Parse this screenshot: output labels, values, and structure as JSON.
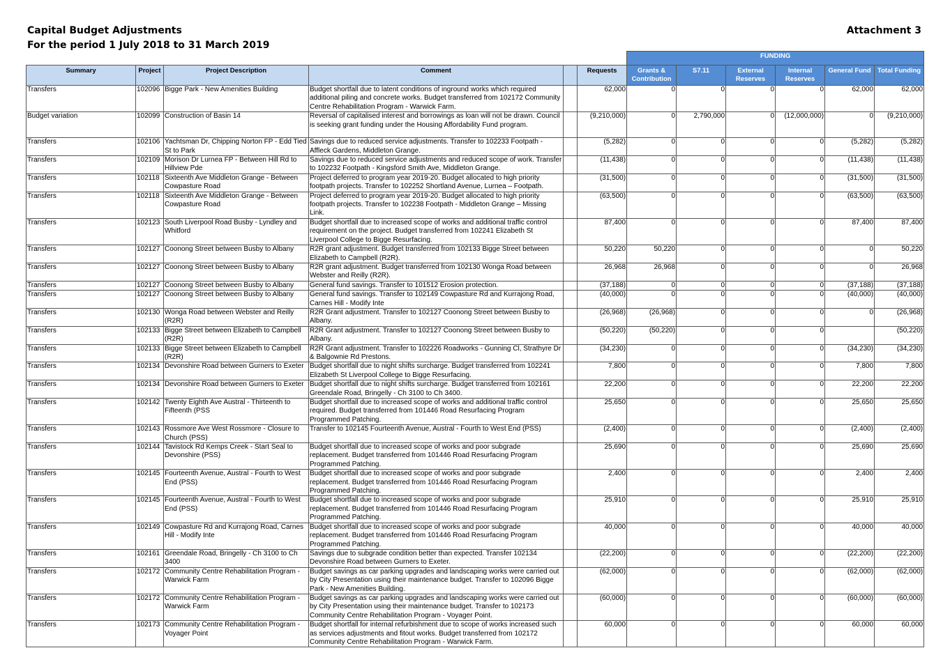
{
  "header": {
    "title": "Capital Budget Adjustments",
    "period": "For the period 1 July 2018 to 31 March 2019",
    "attachment": "Attachment 3"
  },
  "table": {
    "funding_label": "FUNDING",
    "columns": {
      "summary": "Summary",
      "project": "Project",
      "description": "Project Description",
      "comment": "Comment",
      "requests": "Requests",
      "grants": "Grants & Contribution",
      "s711": "S7.11",
      "external": "External Reserves",
      "internal": "Internal Reserves",
      "general": "General Fund",
      "total": "Total Funding"
    },
    "rows": [
      {
        "summary": "Transfers",
        "project": "102096",
        "description": "Bigge Park - New Amenities Building",
        "comment": "Budget shortfall due to latent conditions of inground works which required additional piling and concrete works.  Budget transferred from 102172 Community Centre Rehabilitation Program - Warwick Farm.",
        "requests": "62,000",
        "grants": "0",
        "s711": "0",
        "external": "0",
        "internal": "0",
        "general": "62,000",
        "total": "62,000"
      },
      {
        "summary": "Budget variation",
        "project": "102099",
        "description": "Construction of Basin 14",
        "comment": "Reversal of capitalised interest and borrowings as loan will not be drawn. Council is seeking grant funding under the Housing Affordability Fund program.",
        "requests": "(9,210,000)",
        "grants": "0",
        "s711": "2,790,000",
        "external": "0",
        "internal": "(12,000,000)",
        "general": "0",
        "total": "(9,210,000)"
      },
      {
        "summary": "Transfers",
        "project": "102106",
        "description": "Yachtsman Dr, Chipping Norton FP - Edd Tied St to Park",
        "comment": "Savings due to reduced service adjustments. Transfer to 102233 Footpath - Affleck Gardens, Middleton Grange.",
        "requests": "(5,282)",
        "grants": "0",
        "s711": "0",
        "external": "0",
        "internal": "0",
        "general": "(5,282)",
        "total": "(5,282)"
      },
      {
        "summary": "Transfers",
        "project": "102109",
        "description": "Morison Dr Lurnea FP - Between Hill Rd to Hillview Pde",
        "comment": "Savings due to reduced service adjustments and reduced scope of work. Transfer to 102232 Footpath - Kingsford Smith Ave, Middleton Grange.",
        "requests": "(11,438)",
        "grants": "0",
        "s711": "0",
        "external": "0",
        "internal": "0",
        "general": "(11,438)",
        "total": "(11,438)"
      },
      {
        "summary": "Transfers",
        "project": "102118",
        "description": "Sixteenth Ave Middleton Grange - Between Cowpasture Road",
        "comment": "Project deferred to program year 2019-20.  Budget allocated to high priority footpath projects. Transfer to 102252 Shortland Avenue, Lurnea – Footpath.",
        "requests": "(31,500)",
        "grants": "0",
        "s711": "0",
        "external": "0",
        "internal": "0",
        "general": "(31,500)",
        "total": "(31,500)"
      },
      {
        "summary": "Transfers",
        "project": "102118",
        "description": "Sixteenth Ave Middleton Grange - Between Cowpasture Road",
        "comment": "Project deferred to program year 2019-20.  Budget allocated to high priority footpath projects. Transfer to 102238 Footpath - Middleton Grange – Missing Link.",
        "requests": "(63,500)",
        "grants": "0",
        "s711": "0",
        "external": "0",
        "internal": "0",
        "general": "(63,500)",
        "total": "(63,500)"
      },
      {
        "summary": "Transfers",
        "project": "102123",
        "description": "South Liverpool Road Busby - Lyndley and Whitford",
        "comment": "Budget shortfall due to increased scope of works and additional traffic control requirement on the project.  Budget transferred from 102241 Elizabeth St Liverpool College to Bigge Resurfacing.",
        "requests": "87,400",
        "grants": "0",
        "s711": "0",
        "external": "0",
        "internal": "0",
        "general": "87,400",
        "total": "87,400"
      },
      {
        "summary": "Transfers",
        "project": "102127",
        "description": "Coonong Street between Busby to Albany",
        "comment": "R2R grant adjustment.  Budget transferred from 102133 Bigge Street between Elizabeth to Campbell (R2R).",
        "requests": "50,220",
        "grants": "50,220",
        "s711": "0",
        "external": "0",
        "internal": "0",
        "general": "0",
        "total": "50,220"
      },
      {
        "summary": "Transfers",
        "project": "102127",
        "description": "Coonong Street between Busby to Albany",
        "comment": "R2R grant adjustment.  Budget transferred from 102130 Wonga Road between Webster and Reilly (R2R).",
        "requests": "26,968",
        "grants": "26,968",
        "s711": "0",
        "external": "0",
        "internal": "0",
        "general": "0",
        "total": "26,968"
      },
      {
        "summary": "Transfers",
        "project": "102127",
        "description": "Coonong Street between Busby to Albany",
        "comment": "General fund savings.  Transfer to 101512 Erosion protection.",
        "requests": "(37,188)",
        "grants": "0",
        "s711": "0",
        "external": "0",
        "internal": "0",
        "general": "(37,188)",
        "total": "(37,188)"
      },
      {
        "summary": "Transfers",
        "project": "102127",
        "description": "Coonong Street between Busby to Albany",
        "comment": "General fund savings.  Transfer to 102149 Cowpasture Rd and Kurrajong Road, Carnes Hill  - Modify Inte",
        "requests": "(40,000)",
        "grants": "0",
        "s711": "0",
        "external": "0",
        "internal": "0",
        "general": "(40,000)",
        "total": "(40,000)"
      },
      {
        "summary": "Transfers",
        "project": "102130",
        "description": "Wonga Road between Webster and Reilly (R2R)",
        "comment": "R2R Grant adjustment.  Transfer to 102127 Coonong Street between Busby to Albany.",
        "requests": "(26,968)",
        "grants": "(26,968)",
        "s711": "0",
        "external": "0",
        "internal": "0",
        "general": "0",
        "total": "(26,968)"
      },
      {
        "summary": "Transfers",
        "project": "102133",
        "description": "Bigge Street between Elizabeth to Campbell (R2R)",
        "comment": "R2R Grant adjustment.  Transfer to 102127 Coonong Street between Busby to Albany.",
        "requests": "(50,220)",
        "grants": "(50,220)",
        "s711": "0",
        "external": "0",
        "internal": "0",
        "general": "",
        "total": "(50,220)"
      },
      {
        "summary": "Transfers",
        "project": "102133",
        "description": "Bigge Street between Elizabeth to Campbell (R2R)",
        "comment": "R2R Grant adjustment.  Transfer to 102226 Roadworks - Gunning Cl, Strathyre Dr & Balgownie Rd Prestons.",
        "requests": "(34,230)",
        "grants": "0",
        "s711": "0",
        "external": "0",
        "internal": "0",
        "general": "(34,230)",
        "total": "(34,230)"
      },
      {
        "summary": "Transfers",
        "project": "102134",
        "description": "Devonshire Road between Gurners to Exeter",
        "comment": "Budget shortfall due to night shifts surcharge.  Budget transferred from 102241 Elizabeth St Liverpool College to Bigge Resurfacing.",
        "requests": "7,800",
        "grants": "0",
        "s711": "0",
        "external": "0",
        "internal": "0",
        "general": "7,800",
        "total": "7,800"
      },
      {
        "summary": "Transfers",
        "project": "102134",
        "description": "Devonshire Road between Gurners to Exeter",
        "comment": "Budget shortfall due to night shifts surcharge.  Budget transferred from 102161 Greendale Road, Bringelly - Ch 3100 to Ch 3400.",
        "requests": "22,200",
        "grants": "0",
        "s711": "0",
        "external": "0",
        "internal": "0",
        "general": "22,200",
        "total": "22,200"
      },
      {
        "summary": "Transfers",
        "project": "102142",
        "description": "Twenty Eighth Ave Austral - Thirteenth to Fifteenth (PSS",
        "comment": "Budget shortfall due to increased scope of works and additional traffic control required. Budget transferred from 101446 Road Resurfacing Program Programmed Patching.",
        "requests": "25,650",
        "grants": "0",
        "s711": "0",
        "external": "0",
        "internal": "0",
        "general": "25,650",
        "total": "25,650"
      },
      {
        "summary": "Transfers",
        "project": "102143",
        "description": "Rossmore Ave West Rossmore - Closure to Church (PSS)",
        "comment": "Transfer to 102145 Fourteenth Avenue, Austral - Fourth to West End (PSS)",
        "requests": "(2,400)",
        "grants": "0",
        "s711": "0",
        "external": "0",
        "internal": "0",
        "general": "(2,400)",
        "total": "(2,400)"
      },
      {
        "summary": "Transfers",
        "project": "102144",
        "description": "Tavistock Rd Kemps Creek - Start Seal to Devonshire (PSS)",
        "comment": "Budget shortfall due to increased scope of works and poor subgrade replacement.  Budget transferred from 101446 Road Resurfacing Program Programmed Patching.",
        "requests": "25,690",
        "grants": "0",
        "s711": "0",
        "external": "0",
        "internal": "0",
        "general": "25,690",
        "total": "25,690"
      },
      {
        "summary": "Transfers",
        "project": "102145",
        "description": "Fourteenth Avenue, Austral - Fourth to West End (PSS)",
        "comment": "Budget shortfall due to increased scope of works and poor subgrade replacement.  Budget transferred from 101446 Road Resurfacing Program Programmed Patching.",
        "requests": "2,400",
        "grants": "0",
        "s711": "0",
        "external": "0",
        "internal": "0",
        "general": "2,400",
        "total": "2,400"
      },
      {
        "summary": "Transfers",
        "project": "102145",
        "description": "Fourteenth Avenue, Austral - Fourth to West End (PSS)",
        "comment": "Budget shortfall due to increased scope of works and poor subgrade replacement.  Budget transferred from 101446 Road Resurfacing Program Programmed Patching.",
        "requests": "25,910",
        "grants": "0",
        "s711": "0",
        "external": "0",
        "internal": "0",
        "general": "25,910",
        "total": "25,910"
      },
      {
        "summary": "Transfers",
        "project": "102149",
        "description": "Cowpasture Rd and Kurrajong Road, Carnes Hill  - Modify Inte",
        "comment": "Budget shortfall due to increased scope of works and poor subgrade replacement.  Budget transferred from 101446 Road Resurfacing Program Programmed Patching.",
        "requests": "40,000",
        "grants": "0",
        "s711": "0",
        "external": "0",
        "internal": "0",
        "general": "40,000",
        "total": "40,000"
      },
      {
        "summary": "Transfers",
        "project": "102161",
        "description": "Greendale Road, Bringelly - Ch 3100 to Ch 3400",
        "comment": "Savings due to subgrade condition better than expected. Transfer 102134 Devonshire Road between Gurners to Exeter.",
        "requests": "(22,200)",
        "grants": "0",
        "s711": "0",
        "external": "0",
        "internal": "0",
        "general": "(22,200)",
        "total": "(22,200)"
      },
      {
        "summary": "Transfers",
        "project": "102172",
        "description": "Community Centre Rehabilitation Program - Warwick Farm",
        "comment": "Budget savings as car parking upgrades and landscaping works were carried out by City Presentation using their maintenance budget.  Transfer to 102096 Bigge Park - New Amenities Building.",
        "requests": "(62,000)",
        "grants": "0",
        "s711": "0",
        "external": "0",
        "internal": "0",
        "general": "(62,000)",
        "total": "(62,000)"
      },
      {
        "summary": "Transfers",
        "project": "102172",
        "description": "Community Centre Rehabilitation Program - Warwick Farm",
        "comment": "Budget savings as car parking upgrades and landscaping works were carried out by City Presentation using their maintenance budget.  Transfer to 102173 Community Centre Rehabilitation Program - Voyager Point.",
        "requests": "(60,000)",
        "grants": "0",
        "s711": "0",
        "external": "0",
        "internal": "0",
        "general": "(60,000)",
        "total": "(60,000)"
      },
      {
        "summary": "Transfers",
        "project": "102173",
        "description": "Community Centre Rehabilitation Program - Voyager Point",
        "comment": "Budget shortfall for internal refurbishment due to scope of works increased such as services adjustments and fitout works.  Budget transferred from 102172 Community Centre Rehabilitation Program - Warwick Farm.",
        "requests": "60,000",
        "grants": "0",
        "s711": "0",
        "external": "0",
        "internal": "0",
        "general": "60,000",
        "total": "60,000"
      }
    ]
  },
  "colors": {
    "header_fill": "#c5d9f1",
    "funding_fill": "#548dd4",
    "border": "#555555"
  }
}
